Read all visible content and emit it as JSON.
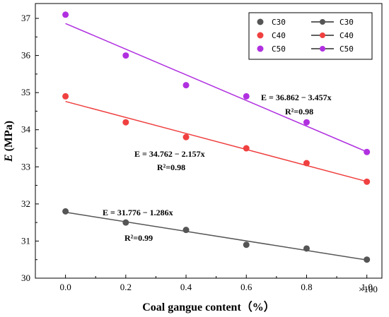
{
  "chart_data": {
    "type": "scatter",
    "title": "",
    "xlabel": "Coal gangue content（%）",
    "ylabel_symbol": "E",
    "ylabel_unit": " (MPa)",
    "x_multiplier": "×100",
    "xlim": [
      -0.1,
      1.05
    ],
    "ylim": [
      30,
      37.4
    ],
    "x_ticks": [
      "0.0",
      "0.2",
      "0.4",
      "0.6",
      "0.8",
      "1.0"
    ],
    "y_ticks": [
      "30",
      "31",
      "32",
      "33",
      "34",
      "35",
      "36",
      "37"
    ],
    "x": [
      0,
      0.2,
      0.4,
      0.6,
      0.8,
      1.0
    ],
    "series": [
      {
        "name": "C30",
        "color": "#555555",
        "values": [
          31.8,
          31.5,
          31.3,
          30.9,
          30.8,
          30.5
        ],
        "fit": {
          "intercept": 31.776,
          "slope": -1.286
        },
        "equation": "E = 31.776 − 1.286x",
        "r2": "R²=0.99"
      },
      {
        "name": "C40",
        "color": "#f04040",
        "values": [
          34.9,
          34.2,
          33.8,
          33.5,
          33.1,
          32.6
        ],
        "fit": {
          "intercept": 34.762,
          "slope": -2.157
        },
        "equation": "E = 34.762 − 2.157x",
        "r2": "R²=0.98"
      },
      {
        "name": "C50",
        "color": "#b030e0",
        "values": [
          37.1,
          36.0,
          35.2,
          34.9,
          34.2,
          33.4
        ],
        "fit": {
          "intercept": 36.862,
          "slope": -3.457
        },
        "equation": "E = 36.862 − 3.457x",
        "r2": "R²=0.98"
      }
    ],
    "legend": {
      "position": "top-right",
      "scatter_labels": [
        "C30",
        "C40",
        "C50"
      ],
      "line_labels": [
        "C30",
        "C40",
        "C50"
      ]
    }
  }
}
